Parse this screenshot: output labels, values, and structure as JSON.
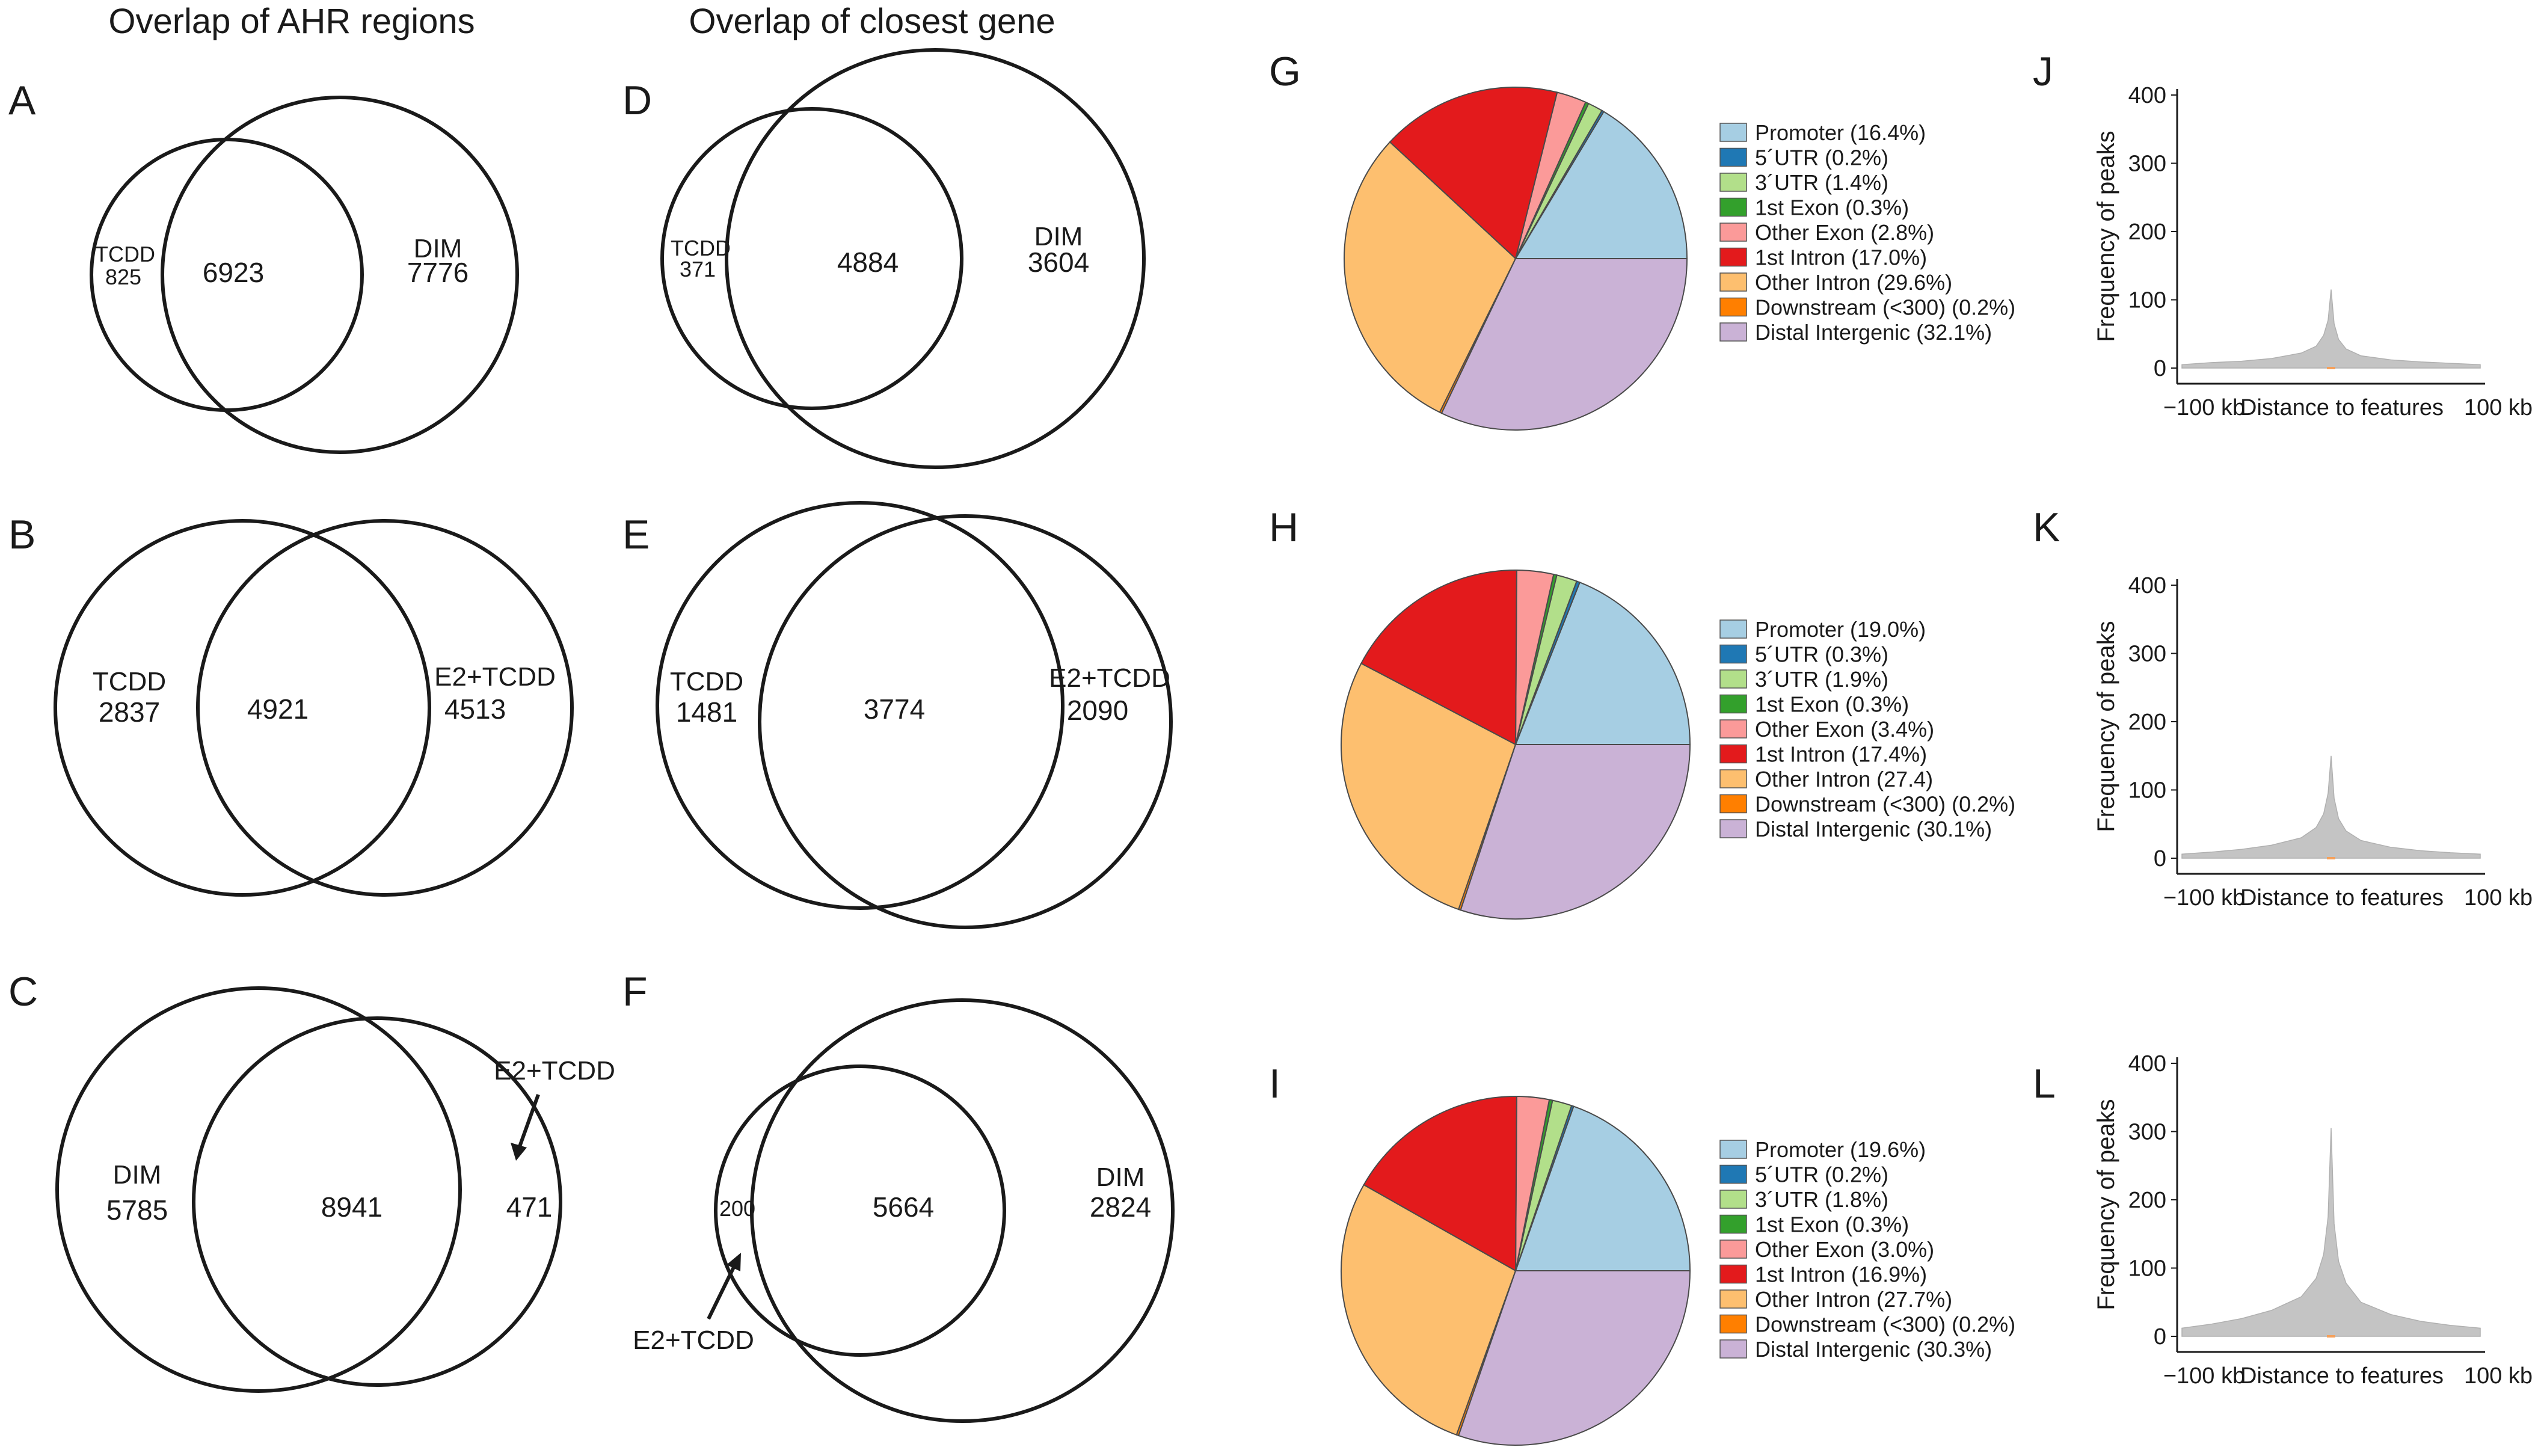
{
  "titles": {
    "col1": "Overlap of AHR regions",
    "col2": "Overlap of closest gene"
  },
  "venn": {
    "A": {
      "letter": "A",
      "left_label": "TCDD",
      "left_only": "825",
      "overlap": "6923",
      "right_label": "DIM",
      "right_only": "7776"
    },
    "B": {
      "letter": "B",
      "left_label": "TCDD",
      "left_only": "2837",
      "overlap": "4921",
      "right_label": "E2+TCDD",
      "right_only": "4513"
    },
    "C": {
      "letter": "C",
      "left_label": "DIM",
      "left_only": "5785",
      "overlap": "8941",
      "right_label": "E2+TCDD",
      "right_only": "471"
    },
    "D": {
      "letter": "D",
      "left_label": "TCDD",
      "left_only": "371",
      "overlap": "4884",
      "right_label": "DIM",
      "right_only": "3604"
    },
    "E": {
      "letter": "E",
      "left_label": "TCDD",
      "left_only": "1481",
      "overlap": "3774",
      "right_label": "E2+TCDD",
      "right_only": "2090"
    },
    "F": {
      "letter": "F",
      "left_label": "E2+TCDD",
      "left_only": "200",
      "overlap": "5664",
      "right_label": "DIM",
      "right_only": "2824"
    }
  },
  "colors": {
    "promoter": "#a6cee3",
    "utr5": "#1f78b4",
    "utr3": "#b2df8a",
    "exon1": "#33a02c",
    "other_exon": "#fb9a99",
    "intron1": "#e31a1c",
    "other_intron": "#fdbf6f",
    "downstream": "#ff7f00",
    "distal": "#cab2d6",
    "hist_fill": "#c4c4c4",
    "hist_tick": "#f5a05a",
    "line": "#1a1a1a"
  },
  "chart_data": [
    {
      "type": "pie",
      "panel": "G",
      "categories": [
        "Promoter",
        "5´UTR",
        "3´UTR",
        "1st Exon",
        "Other Exon",
        "1st Intron",
        "Other Intron",
        "Downstream (<300)",
        "Distal Intergenic"
      ],
      "values": [
        16.4,
        0.2,
        1.4,
        0.3,
        2.8,
        17.0,
        29.6,
        0.2,
        32.1
      ],
      "legend": [
        "Promoter (16.4%)",
        "5´UTR (0.2%)",
        "3´UTR (1.4%)",
        "1st Exon (0.3%)",
        "Other Exon (2.8%)",
        "1st Intron (17.0%)",
        "Other Intron (29.6%)",
        "Downstream (<300) (0.2%)",
        "Distal Intergenic (32.1%)"
      ]
    },
    {
      "type": "pie",
      "panel": "H",
      "categories": [
        "Promoter",
        "5´UTR",
        "3´UTR",
        "1st Exon",
        "Other Exon",
        "1st Intron",
        "Other Intron",
        "Downstream (<300)",
        "Distal Intergenic"
      ],
      "values": [
        19.0,
        0.3,
        1.9,
        0.3,
        3.4,
        17.4,
        27.4,
        0.2,
        30.1
      ],
      "legend": [
        "Promoter (19.0%)",
        "5´UTR (0.3%)",
        "3´UTR (1.9%)",
        "1st Exon (0.3%)",
        "Other Exon (3.4%)",
        "1st Intron (17.4%)",
        "Other Intron (27.4)",
        "Downstream (<300) (0.2%)",
        "Distal Intergenic (30.1%)"
      ]
    },
    {
      "type": "pie",
      "panel": "I",
      "categories": [
        "Promoter",
        "5´UTR",
        "3´UTR",
        "1st Exon",
        "Other Exon",
        "1st Intron",
        "Other Intron",
        "Downstream (<300)",
        "Distal Intergenic"
      ],
      "values": [
        19.6,
        0.2,
        1.8,
        0.3,
        3.0,
        16.9,
        27.7,
        0.2,
        30.3
      ],
      "legend": [
        "Promoter (19.6%)",
        "5´UTR (0.2%)",
        "3´UTR (1.8%)",
        "1st Exon (0.3%)",
        "Other Exon (3.0%)",
        "1st Intron (16.9%)",
        "Other Intron (27.7%)",
        "Downstream (<300) (0.2%)",
        "Distal Intergenic (30.3%)"
      ]
    },
    {
      "type": "area",
      "panel": "J",
      "title": "",
      "ylabel": "Frequency of peaks",
      "xlabel": "Distance to features",
      "x_tick_labels": [
        "−100 kb",
        "100 kb"
      ],
      "xlim_kb": [
        -100,
        100
      ],
      "ylim": [
        0,
        400
      ],
      "y_ticks": [
        0,
        100,
        200,
        300,
        400
      ],
      "x_kb": [
        -100,
        -80,
        -60,
        -40,
        -20,
        -10,
        -5,
        -2,
        0,
        2,
        5,
        10,
        20,
        40,
        60,
        80,
        100
      ],
      "values": [
        5,
        8,
        10,
        14,
        22,
        32,
        48,
        70,
        115,
        65,
        42,
        28,
        18,
        12,
        9,
        7,
        5
      ]
    },
    {
      "type": "area",
      "panel": "K",
      "title": "",
      "ylabel": "Frequency of peaks",
      "xlabel": "Distance to features",
      "x_tick_labels": [
        "−100 kb",
        "100 kb"
      ],
      "xlim_kb": [
        -100,
        100
      ],
      "ylim": [
        0,
        400
      ],
      "y_ticks": [
        0,
        100,
        200,
        300,
        400
      ],
      "x_kb": [
        -100,
        -80,
        -60,
        -40,
        -20,
        -10,
        -5,
        -2,
        0,
        2,
        5,
        10,
        20,
        40,
        60,
        80,
        100
      ],
      "values": [
        6,
        9,
        13,
        19,
        30,
        45,
        65,
        95,
        150,
        88,
        58,
        40,
        26,
        16,
        11,
        8,
        6
      ]
    },
    {
      "type": "area",
      "panel": "L",
      "title": "",
      "ylabel": "Frequency of peaks",
      "xlabel": "Distance to features",
      "x_tick_labels": [
        "−100 kb",
        "100 kb"
      ],
      "xlim_kb": [
        -100,
        100
      ],
      "ylim": [
        0,
        400
      ],
      "y_ticks": [
        0,
        100,
        200,
        300,
        400
      ],
      "x_kb": [
        -100,
        -80,
        -60,
        -40,
        -20,
        -10,
        -5,
        -2,
        0,
        2,
        5,
        10,
        20,
        40,
        60,
        80,
        100
      ],
      "values": [
        12,
        18,
        26,
        38,
        58,
        85,
        120,
        175,
        305,
        165,
        110,
        78,
        50,
        32,
        22,
        16,
        12
      ]
    }
  ]
}
